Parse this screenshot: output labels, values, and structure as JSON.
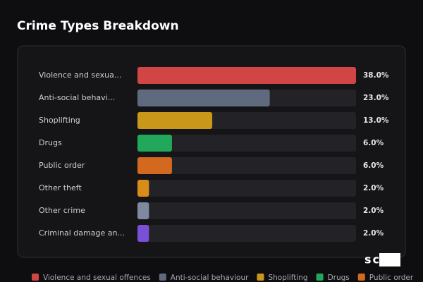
{
  "chart_data": {
    "type": "bar",
    "orientation": "horizontal",
    "title": "Crime Types Breakdown",
    "categories": [
      "Violence and sexua...",
      "Anti-social behavi...",
      "Shoplifting",
      "Drugs",
      "Public order",
      "Other theft",
      "Other crime",
      "Criminal damage an..."
    ],
    "values": [
      38,
      23,
      13,
      6,
      6,
      2,
      2,
      2
    ],
    "value_labels": [
      "38.0%",
      "23.0%",
      "13.0%",
      "6.0%",
      "6.0%",
      "2.0%",
      "2.0%",
      "2.0%"
    ],
    "colors": [
      "#d24545",
      "#5f6a7e",
      "#c9981a",
      "#22a85a",
      "#d2691e",
      "#d98c1a",
      "#7f8aa0",
      "#7b4fd6"
    ],
    "legend": [
      {
        "name": "Violence and sexual offences",
        "color": "#d24545"
      },
      {
        "name": "Anti-social behaviour",
        "color": "#5f6a7e"
      },
      {
        "name": "Shoplifting",
        "color": "#c9981a"
      },
      {
        "name": "Drugs",
        "color": "#22a85a"
      },
      {
        "name": "Public order",
        "color": "#d2691e"
      }
    ],
    "logo": "scOS"
  }
}
